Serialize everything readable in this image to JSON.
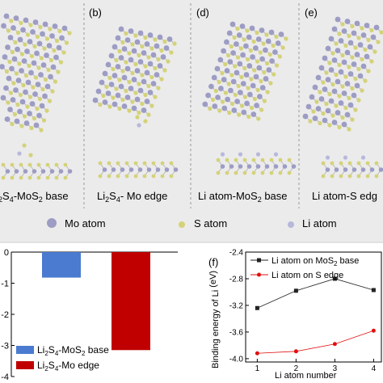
{
  "panels": [
    {
      "letter": "",
      "caption_parts": [
        "",
        "2",
        "S",
        "4",
        "-MoS",
        "2",
        " base"
      ]
    },
    {
      "letter": "(b)",
      "caption_parts": [
        "Li",
        "2",
        "S",
        "4",
        "- Mo edge",
        "",
        ""
      ]
    },
    {
      "letter": "(d)",
      "caption_parts": [
        "Li atom-MoS",
        "2",
        " base",
        "",
        "",
        "",
        ""
      ]
    },
    {
      "letter": "(e)",
      "caption_parts": [
        "Li atom-S edg",
        "",
        "",
        "",
        "",
        "",
        ""
      ]
    }
  ],
  "legend_atoms": [
    {
      "label": "Mo atom",
      "color": "#9c9cc4"
    },
    {
      "label": "S atom",
      "color": "#d4d279"
    },
    {
      "label": "Li atom",
      "color": "#b8b8dc"
    }
  ],
  "colors": {
    "mo": "#9c9cc4",
    "s": "#d4d279",
    "li": "#b8b8dc",
    "bar_blue": "#4a7bd0",
    "bar_red": "#c00000",
    "line_black": "#222222",
    "line_red": "#e01010",
    "panel_bg": "#ebebeb"
  },
  "chart_data": [
    {
      "type": "bar",
      "title": "",
      "xlabel": "",
      "ylabel": "",
      "ylim": [
        -4,
        0
      ],
      "yticks": [
        "0",
        "-1",
        "-2",
        "-3",
        "-4"
      ],
      "series": [
        {
          "name": "Li2S4-MoS2 base",
          "value": -0.82,
          "color": "#4a7bd0"
        },
        {
          "name": "Li2S4-Mo edge",
          "value": -3.15,
          "color": "#c00000"
        }
      ],
      "legend": [
        {
          "parts": [
            "Li",
            "2",
            "S",
            "4",
            "-MoS",
            "2",
            " base"
          ]
        },
        {
          "parts": [
            "Li",
            "2",
            "S",
            "4",
            "-Mo edge",
            "",
            ""
          ]
        }
      ],
      "legend_position": "bottom-left"
    },
    {
      "type": "line",
      "panel_letter": "(f)",
      "xlabel": "Li atom number",
      "ylabel_parts": [
        "Binding energy of Li",
        "",
        " (eV)"
      ],
      "x": [
        1,
        2,
        3,
        4
      ],
      "xlim": [
        0.7,
        4.2
      ],
      "ylim": [
        -4.05,
        -2.4
      ],
      "xticks": [
        "1",
        "2",
        "3",
        "4"
      ],
      "yticks": [
        "-2.4",
        "-2.8",
        "-3.2",
        "-3.6",
        "-4.0"
      ],
      "ytick_values": [
        -2.4,
        -2.8,
        -3.2,
        -3.6,
        -4.0
      ],
      "series": [
        {
          "name_parts": [
            "Li atom on MoS",
            "2",
            " base"
          ],
          "values": [
            -3.24,
            -2.98,
            -2.8,
            -2.97
          ],
          "color": "#222222",
          "marker": "square"
        },
        {
          "name_parts": [
            "Li atom on S edge",
            "",
            ""
          ],
          "values": [
            -3.92,
            -3.89,
            -3.78,
            -3.58
          ],
          "color": "#e01010",
          "marker": "circle"
        }
      ],
      "legend_position": "top-left"
    }
  ]
}
